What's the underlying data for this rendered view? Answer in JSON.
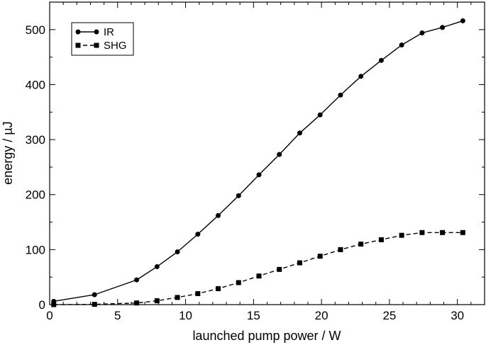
{
  "chart_data": {
    "type": "line",
    "title": "",
    "xlabel": "launched pump power / W",
    "ylabel": "energy / µJ",
    "xlim": [
      0,
      32
    ],
    "ylim": [
      0,
      550
    ],
    "xticks": [
      0,
      5,
      10,
      15,
      20,
      25,
      30
    ],
    "yticks": [
      0,
      100,
      200,
      300,
      400,
      500
    ],
    "xtick_labels": [
      "0",
      "5",
      "10",
      "15",
      "20",
      "25",
      "30"
    ],
    "ytick_labels": [
      "0",
      "100",
      "200",
      "300",
      "400",
      "500"
    ],
    "grid": false,
    "legend_position": "top-left",
    "series": [
      {
        "name": "IR",
        "line_style": "solid",
        "marker": "circle",
        "color": "#000000",
        "x": [
          0.3,
          3.3,
          6.4,
          7.9,
          9.4,
          10.9,
          12.4,
          13.9,
          15.4,
          16.9,
          18.4,
          19.9,
          21.4,
          22.9,
          24.4,
          25.9,
          27.4,
          28.9,
          30.4
        ],
        "y": [
          6,
          18,
          45,
          69,
          96,
          128,
          162,
          198,
          236,
          273,
          312,
          345,
          381,
          415,
          444,
          472,
          494,
          504,
          516
        ]
      },
      {
        "name": "SHG",
        "line_style": "dashed",
        "marker": "square",
        "color": "#000000",
        "x": [
          0.3,
          3.3,
          6.4,
          7.9,
          9.4,
          10.9,
          12.4,
          13.9,
          15.4,
          16.9,
          18.4,
          19.9,
          21.4,
          22.9,
          24.4,
          25.9,
          27.4,
          28.9,
          30.4
        ],
        "y": [
          0,
          0.5,
          3,
          7,
          13,
          20,
          29,
          40,
          52,
          64,
          76,
          88,
          100,
          110,
          118,
          126,
          131,
          131,
          131
        ]
      }
    ]
  }
}
